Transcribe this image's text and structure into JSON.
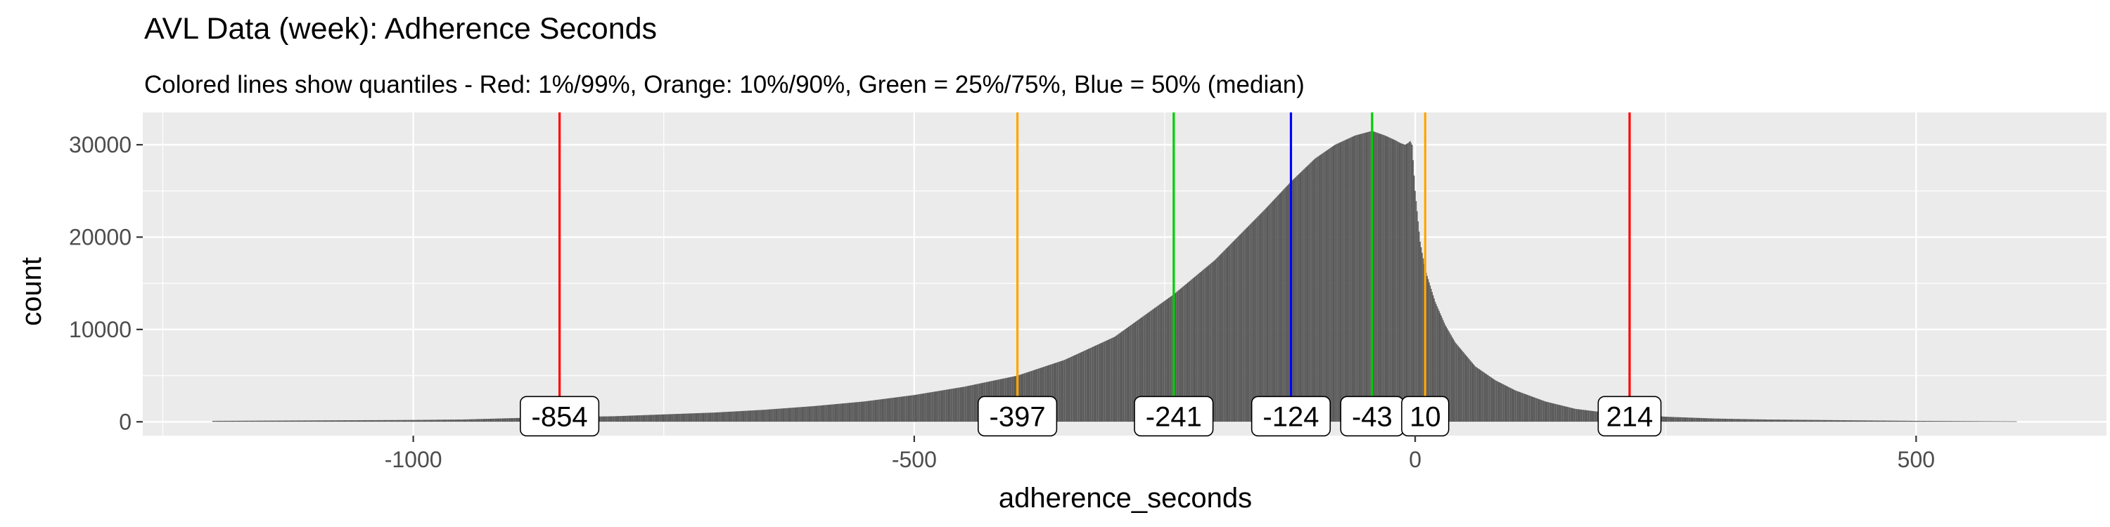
{
  "chart_data": {
    "type": "bar",
    "title": "AVL Data (week): Adherence Seconds",
    "subtitle": "Colored lines show quantiles - Red: 1%/99%, Orange: 10%/90%, Green = 25%/75%, Blue = 50% (median)",
    "xlabel": "adherence_seconds",
    "ylabel": "count",
    "xlim": [
      -1270,
      690
    ],
    "ylim": [
      -1500,
      33500
    ],
    "x_ticks": [
      {
        "value": -1000,
        "label": "-1000"
      },
      {
        "value": -500,
        "label": "-500"
      },
      {
        "value": 0,
        "label": "0"
      },
      {
        "value": 500,
        "label": "500"
      }
    ],
    "y_ticks": [
      {
        "value": 0,
        "label": "0"
      },
      {
        "value": 10000,
        "label": "10000"
      },
      {
        "value": 20000,
        "label": "20000"
      },
      {
        "value": 30000,
        "label": "30000"
      }
    ],
    "grid": true,
    "bin_width": 1,
    "histogram_profile": {
      "description": "count per 1-second bin of adherence_seconds, sampled at these x values",
      "x": [
        -1200,
        -1100,
        -1000,
        -950,
        -900,
        -854,
        -800,
        -750,
        -700,
        -650,
        -600,
        -550,
        -500,
        -450,
        -397,
        -350,
        -300,
        -241,
        -200,
        -150,
        -124,
        -100,
        -80,
        -60,
        -43,
        -30,
        -20,
        -15,
        -10,
        -7,
        -5,
        -3,
        0,
        5,
        10,
        20,
        30,
        40,
        60,
        80,
        100,
        130,
        160,
        190,
        214,
        250,
        300,
        350,
        400,
        500,
        600
      ],
      "y": [
        100,
        150,
        200,
        250,
        400,
        500,
        600,
        800,
        1000,
        1300,
        1700,
        2200,
        2900,
        3800,
        5000,
        6700,
        9200,
        13800,
        17500,
        23000,
        26000,
        28500,
        30000,
        31000,
        31500,
        31000,
        30500,
        30200,
        30000,
        30200,
        30400,
        30000,
        25000,
        19500,
        16500,
        13000,
        10500,
        8600,
        6000,
        4500,
        3400,
        2200,
        1400,
        1000,
        850,
        550,
        350,
        250,
        200,
        100,
        50
      ]
    },
    "quantile_lines": [
      {
        "quantile": "1%",
        "value": -854,
        "label": "-854",
        "color": "#ff0000"
      },
      {
        "quantile": "10%",
        "value": -397,
        "label": "-397",
        "color": "#ffa500"
      },
      {
        "quantile": "25%",
        "value": -241,
        "label": "-241",
        "color": "#00cd00"
      },
      {
        "quantile": "50%",
        "value": -124,
        "label": "-124",
        "color": "#0000ff"
      },
      {
        "quantile": "75%",
        "value": -43,
        "label": "-43",
        "color": "#00cd00"
      },
      {
        "quantile": "90%",
        "value": 10,
        "label": "10",
        "color": "#ffa500"
      },
      {
        "quantile": "99%",
        "value": 214,
        "label": "214",
        "color": "#ff0000"
      }
    ],
    "colors": {
      "bars": "#595959",
      "panel_background": "#ebebeb",
      "gridline": "#ffffff"
    }
  }
}
